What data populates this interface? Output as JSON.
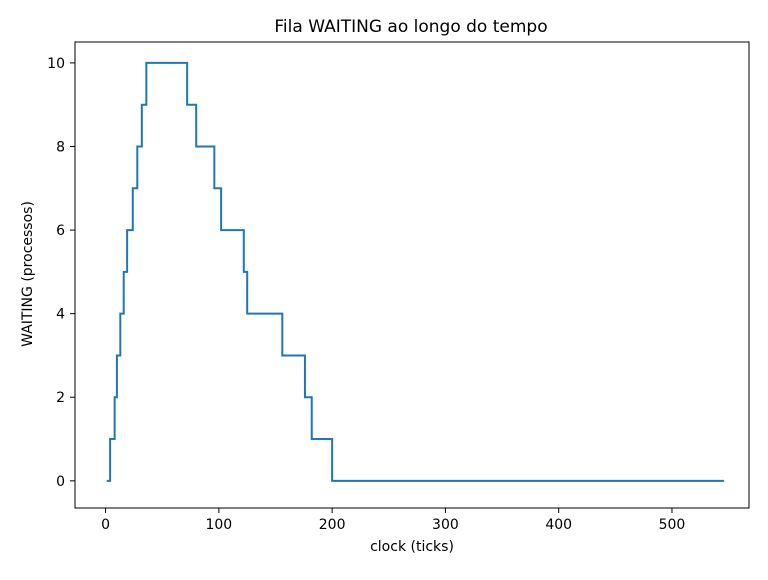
{
  "chart_data": {
    "type": "line",
    "title": "Fila WAITING ao longo do tempo",
    "xlabel": "clock (ticks)",
    "ylabel": "WAITING (processos)",
    "xlim": [
      -27,
      568
    ],
    "ylim": [
      -0.65,
      10.5
    ],
    "xticks": [
      0,
      100,
      200,
      300,
      400,
      500
    ],
    "yticks": [
      0,
      2,
      4,
      6,
      8,
      10
    ],
    "grid": false,
    "step": "post",
    "line_color": "#1f77b4",
    "series": [
      {
        "x": [
          1,
          4,
          8,
          10,
          13,
          16,
          19,
          24,
          28,
          32,
          36,
          72,
          76,
          80,
          90,
          96,
          102,
          118,
          122,
          125,
          156,
          176,
          182,
          196,
          200,
          546
        ],
        "y": [
          0,
          1,
          2,
          3,
          4,
          5,
          6,
          7,
          8,
          9,
          10,
          9,
          9,
          8,
          8,
          7,
          6,
          6,
          5,
          4,
          3,
          2,
          1,
          1,
          0,
          0
        ]
      }
    ]
  }
}
